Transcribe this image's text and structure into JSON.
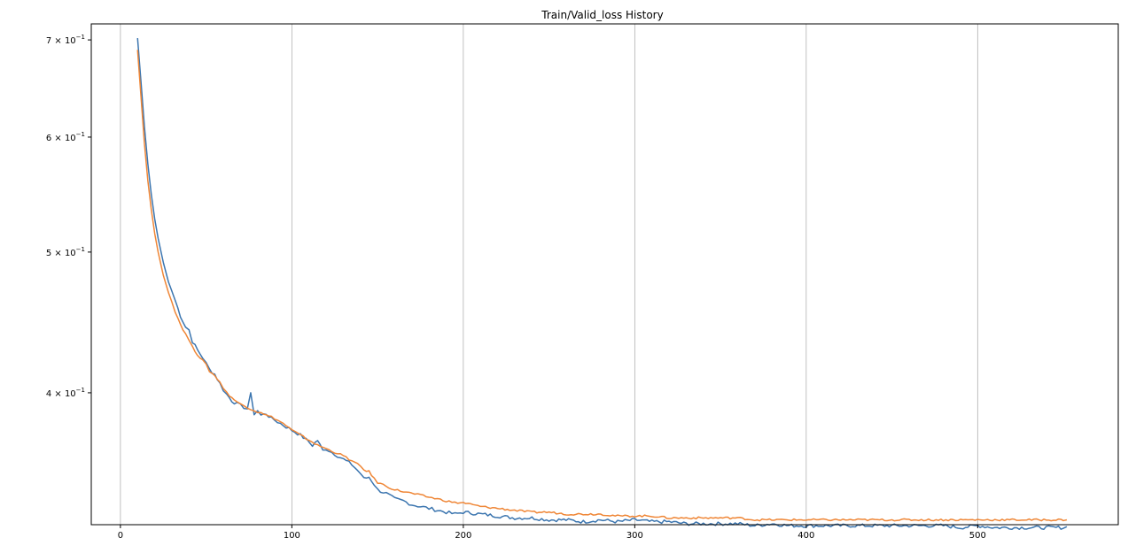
{
  "colors": {
    "background": "#ffffff",
    "axes": "#000000",
    "grid": "#b0b0b0",
    "series_1": "#3b75af",
    "series_2": "#ef8636"
  },
  "chart_data": {
    "type": "line",
    "title": "Train/Valid_loss History",
    "xlabel": "",
    "ylabel": "",
    "yscale": "log",
    "xlim": [
      -17,
      582
    ],
    "ylim": [
      0.3245,
      0.718
    ],
    "grid": {
      "x": true,
      "y": false
    },
    "legend": "none",
    "x_ticks": [
      {
        "value": 0,
        "label": "0"
      },
      {
        "value": 100,
        "label": "100"
      },
      {
        "value": 200,
        "label": "200"
      },
      {
        "value": 300,
        "label": "300"
      },
      {
        "value": 400,
        "label": "400"
      },
      {
        "value": 500,
        "label": "500"
      }
    ],
    "y_ticks": [
      {
        "value": 0.4,
        "base": "4 × 10",
        "exp": "−1"
      },
      {
        "value": 0.5,
        "base": "5 × 10",
        "exp": "−1"
      },
      {
        "value": 0.6,
        "base": "6 × 10",
        "exp": "−1"
      },
      {
        "value": 0.7,
        "base": "7 × 10",
        "exp": "−1"
      }
    ],
    "series": [
      {
        "color": "#3b75af",
        "points": [
          [
            10,
            0.702
          ],
          [
            12,
            0.655
          ],
          [
            14,
            0.61
          ],
          [
            16,
            0.575
          ],
          [
            18,
            0.548
          ],
          [
            20,
            0.527
          ],
          [
            22,
            0.511
          ],
          [
            25,
            0.492
          ],
          [
            28,
            0.477
          ],
          [
            30,
            0.47
          ],
          [
            32,
            0.463
          ],
          [
            35,
            0.452
          ],
          [
            38,
            0.444
          ],
          [
            40,
            0.442
          ],
          [
            42,
            0.434
          ],
          [
            45,
            0.428
          ],
          [
            48,
            0.423
          ],
          [
            50,
            0.419
          ],
          [
            52,
            0.415
          ],
          [
            55,
            0.412
          ],
          [
            58,
            0.406
          ],
          [
            60,
            0.402
          ],
          [
            62,
            0.399
          ],
          [
            65,
            0.395
          ],
          [
            68,
            0.393
          ],
          [
            70,
            0.392
          ],
          [
            72,
            0.391
          ],
          [
            74,
            0.39
          ],
          [
            76,
            0.399
          ],
          [
            78,
            0.387
          ],
          [
            80,
            0.389
          ],
          [
            82,
            0.386
          ],
          [
            85,
            0.387
          ],
          [
            88,
            0.384
          ],
          [
            90,
            0.383
          ],
          [
            95,
            0.38
          ],
          [
            100,
            0.377
          ],
          [
            105,
            0.374
          ],
          [
            110,
            0.37
          ],
          [
            112,
            0.368
          ],
          [
            115,
            0.371
          ],
          [
            118,
            0.365
          ],
          [
            120,
            0.366
          ],
          [
            125,
            0.363
          ],
          [
            130,
            0.36
          ],
          [
            135,
            0.357
          ],
          [
            140,
            0.352
          ],
          [
            142,
            0.349
          ],
          [
            145,
            0.35
          ],
          [
            148,
            0.346
          ],
          [
            150,
            0.343
          ],
          [
            155,
            0.341
          ],
          [
            160,
            0.338
          ],
          [
            165,
            0.337
          ],
          [
            170,
            0.335
          ],
          [
            175,
            0.334
          ],
          [
            180,
            0.333
          ],
          [
            185,
            0.332
          ],
          [
            190,
            0.331
          ],
          [
            195,
            0.33
          ],
          [
            200,
            0.331
          ],
          [
            210,
            0.33
          ],
          [
            220,
            0.329
          ],
          [
            230,
            0.328
          ],
          [
            240,
            0.328
          ],
          [
            250,
            0.327
          ],
          [
            260,
            0.327
          ],
          [
            270,
            0.326
          ],
          [
            280,
            0.327
          ],
          [
            290,
            0.326
          ],
          [
            300,
            0.327
          ],
          [
            310,
            0.326
          ],
          [
            320,
            0.326
          ],
          [
            330,
            0.325
          ],
          [
            340,
            0.325
          ],
          [
            350,
            0.325
          ],
          [
            360,
            0.325
          ],
          [
            370,
            0.324
          ],
          [
            380,
            0.325
          ],
          [
            390,
            0.324
          ],
          [
            400,
            0.324
          ],
          [
            410,
            0.324
          ],
          [
            420,
            0.324
          ],
          [
            430,
            0.324
          ],
          [
            440,
            0.324
          ],
          [
            450,
            0.324
          ],
          [
            460,
            0.324
          ],
          [
            470,
            0.324
          ],
          [
            480,
            0.324
          ],
          [
            490,
            0.323
          ],
          [
            500,
            0.324
          ],
          [
            510,
            0.323
          ],
          [
            520,
            0.323
          ],
          [
            530,
            0.323
          ],
          [
            540,
            0.323
          ],
          [
            550,
            0.323
          ],
          [
            552,
            0.3235
          ]
        ]
      },
      {
        "color": "#ef8636",
        "points": [
          [
            10,
            0.689
          ],
          [
            12,
            0.64
          ],
          [
            14,
            0.594
          ],
          [
            16,
            0.56
          ],
          [
            18,
            0.535
          ],
          [
            20,
            0.515
          ],
          [
            22,
            0.5
          ],
          [
            25,
            0.482
          ],
          [
            28,
            0.469
          ],
          [
            30,
            0.462
          ],
          [
            32,
            0.455
          ],
          [
            35,
            0.446
          ],
          [
            38,
            0.439
          ],
          [
            40,
            0.435
          ],
          [
            42,
            0.43
          ],
          [
            45,
            0.425
          ],
          [
            48,
            0.421
          ],
          [
            50,
            0.418
          ],
          [
            52,
            0.414
          ],
          [
            55,
            0.411
          ],
          [
            58,
            0.407
          ],
          [
            60,
            0.403
          ],
          [
            62,
            0.4
          ],
          [
            65,
            0.397
          ],
          [
            68,
            0.394
          ],
          [
            70,
            0.393
          ],
          [
            72,
            0.392
          ],
          [
            74,
            0.391
          ],
          [
            76,
            0.39
          ],
          [
            78,
            0.389
          ],
          [
            80,
            0.388
          ],
          [
            82,
            0.388
          ],
          [
            85,
            0.386
          ],
          [
            88,
            0.385
          ],
          [
            90,
            0.384
          ],
          [
            95,
            0.381
          ],
          [
            100,
            0.377
          ],
          [
            105,
            0.374
          ],
          [
            110,
            0.371
          ],
          [
            112,
            0.37
          ],
          [
            115,
            0.368
          ],
          [
            118,
            0.367
          ],
          [
            120,
            0.366
          ],
          [
            125,
            0.364
          ],
          [
            130,
            0.362
          ],
          [
            135,
            0.359
          ],
          [
            140,
            0.356
          ],
          [
            142,
            0.354
          ],
          [
            145,
            0.353
          ],
          [
            148,
            0.349
          ],
          [
            150,
            0.347
          ],
          [
            155,
            0.345
          ],
          [
            160,
            0.343
          ],
          [
            165,
            0.342
          ],
          [
            170,
            0.341
          ],
          [
            175,
            0.34
          ],
          [
            180,
            0.339
          ],
          [
            185,
            0.338
          ],
          [
            190,
            0.337
          ],
          [
            195,
            0.336
          ],
          [
            200,
            0.336
          ],
          [
            210,
            0.334
          ],
          [
            220,
            0.333
          ],
          [
            230,
            0.332
          ],
          [
            240,
            0.331
          ],
          [
            250,
            0.331
          ],
          [
            260,
            0.33
          ],
          [
            270,
            0.33
          ],
          [
            280,
            0.33
          ],
          [
            290,
            0.329
          ],
          [
            300,
            0.329
          ],
          [
            310,
            0.329
          ],
          [
            320,
            0.328
          ],
          [
            330,
            0.328
          ],
          [
            340,
            0.328
          ],
          [
            350,
            0.328
          ],
          [
            360,
            0.328
          ],
          [
            370,
            0.327
          ],
          [
            380,
            0.327
          ],
          [
            390,
            0.327
          ],
          [
            400,
            0.327
          ],
          [
            410,
            0.327
          ],
          [
            420,
            0.327
          ],
          [
            430,
            0.327
          ],
          [
            440,
            0.327
          ],
          [
            450,
            0.327
          ],
          [
            460,
            0.327
          ],
          [
            470,
            0.327
          ],
          [
            480,
            0.327
          ],
          [
            490,
            0.327
          ],
          [
            500,
            0.327
          ],
          [
            510,
            0.327
          ],
          [
            520,
            0.327
          ],
          [
            530,
            0.327
          ],
          [
            540,
            0.327
          ],
          [
            550,
            0.327
          ],
          [
            552,
            0.327
          ]
        ]
      }
    ]
  }
}
